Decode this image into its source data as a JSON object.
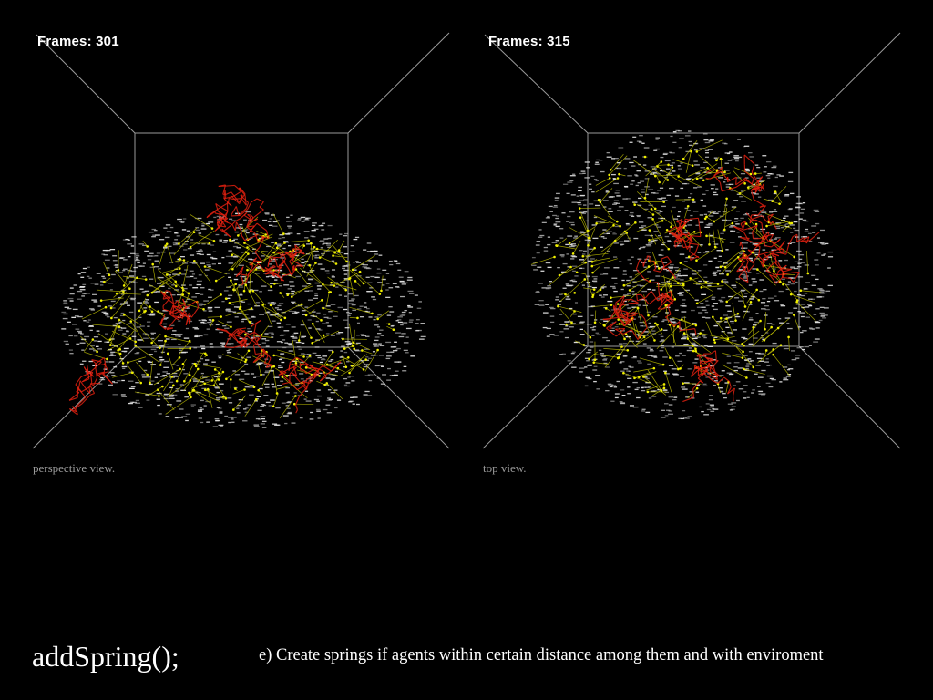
{
  "panels": [
    {
      "frames_label": "Frames: 301",
      "caption": "perspective view."
    },
    {
      "frames_label": "Frames: 315",
      "caption": "top view."
    }
  ],
  "footer": {
    "title": "addSpring();",
    "description": "e) Create springs if agents within certain distance among them and with enviroment"
  },
  "colors": {
    "background": "#000000",
    "agents": "#e0e0e0",
    "springs": "#c8c800",
    "clusters": "#e02010",
    "box": "#9a9a9a"
  }
}
